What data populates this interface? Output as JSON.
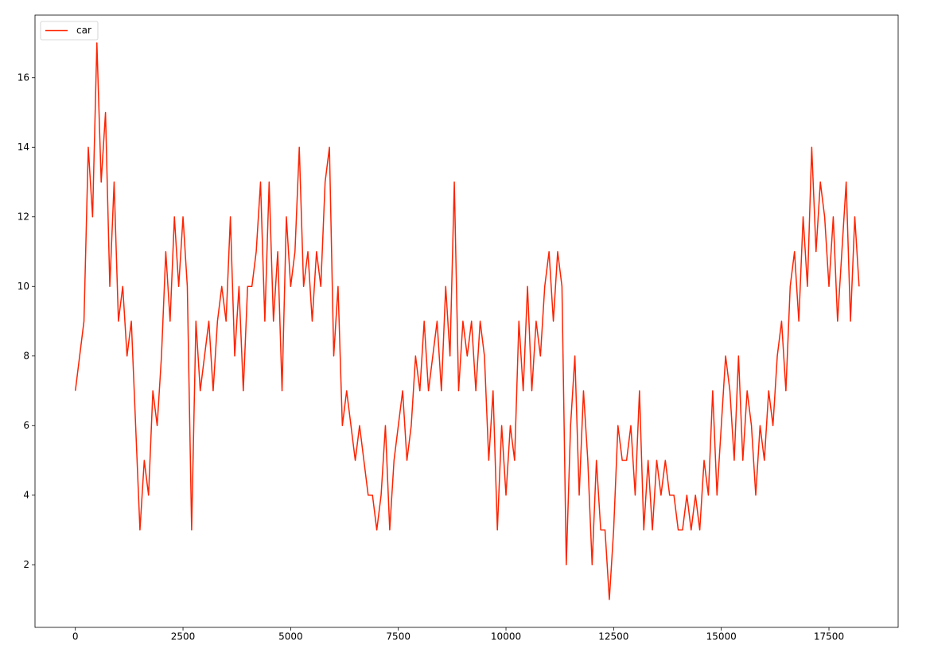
{
  "chart_data": {
    "type": "line",
    "x": [
      0,
      100,
      200,
      300,
      400,
      500,
      600,
      700,
      800,
      900,
      1000,
      1100,
      1200,
      1300,
      1400,
      1500,
      1600,
      1700,
      1800,
      1900,
      2000,
      2100,
      2200,
      2300,
      2400,
      2500,
      2600,
      2700,
      2800,
      2900,
      3000,
      3100,
      3200,
      3300,
      3400,
      3500,
      3600,
      3700,
      3800,
      3900,
      4000,
      4100,
      4200,
      4300,
      4400,
      4500,
      4600,
      4700,
      4800,
      4900,
      5000,
      5100,
      5200,
      5300,
      5400,
      5500,
      5600,
      5700,
      5800,
      5900,
      6000,
      6100,
      6200,
      6300,
      6400,
      6500,
      6600,
      6700,
      6800,
      6900,
      7000,
      7100,
      7200,
      7300,
      7400,
      7500,
      7600,
      7700,
      7800,
      7900,
      8000,
      8100,
      8200,
      8300,
      8400,
      8500,
      8600,
      8700,
      8800,
      8900,
      9000,
      9100,
      9200,
      9300,
      9400,
      9500,
      9600,
      9700,
      9800,
      9900,
      10000,
      10100,
      10200,
      10300,
      10400,
      10500,
      10600,
      10700,
      10800,
      10900,
      11000,
      11100,
      11200,
      11300,
      11400,
      11500,
      11600,
      11700,
      11800,
      11900,
      12000,
      12100,
      12200,
      12300,
      12400,
      12500,
      12600,
      12700,
      12800,
      12900,
      13000,
      13100,
      13200,
      13300,
      13400,
      13500,
      13600,
      13700,
      13800,
      13900,
      14000,
      14100,
      14200,
      14300,
      14400,
      14500,
      14600,
      14700,
      14800,
      14900,
      15000,
      15100,
      15200,
      15300,
      15400,
      15500,
      15600,
      15700,
      15800,
      15900,
      16000,
      16100,
      16200,
      16300,
      16400,
      16500,
      16600,
      16700,
      16800,
      16900,
      17000,
      17100,
      17200,
      17300,
      17400,
      17500,
      17600,
      17700,
      17800,
      17900,
      18000,
      18100,
      18200
    ],
    "series": [
      {
        "name": "car",
        "color": "#ff2200",
        "values": [
          7,
          8,
          9,
          14,
          12,
          17,
          13,
          15,
          10,
          13,
          9,
          10,
          8,
          9,
          6,
          3,
          5,
          4,
          7,
          6,
          8,
          11,
          9,
          12,
          10,
          12,
          10,
          3,
          9,
          7,
          8,
          9,
          7,
          9,
          10,
          9,
          12,
          8,
          10,
          7,
          10,
          10,
          11,
          13,
          9,
          13,
          9,
          11,
          7,
          12,
          10,
          11,
          14,
          10,
          11,
          9,
          11,
          10,
          13,
          14,
          8,
          10,
          6,
          7,
          6,
          5,
          6,
          5,
          4,
          4,
          3,
          4,
          6,
          3,
          5,
          6,
          7,
          5,
          6,
          8,
          7,
          9,
          7,
          8,
          9,
          7,
          10,
          8,
          13,
          7,
          9,
          8,
          9,
          7,
          9,
          8,
          5,
          7,
          3,
          6,
          4,
          6,
          5,
          9,
          7,
          10,
          7,
          9,
          8,
          10,
          11,
          9,
          11,
          10,
          2,
          6,
          8,
          4,
          7,
          5,
          2,
          5,
          3,
          3,
          1,
          3,
          6,
          5,
          5,
          6,
          4,
          7,
          3,
          5,
          3,
          5,
          4,
          5,
          4,
          4,
          3,
          3,
          4,
          3,
          4,
          3,
          5,
          4,
          7,
          4,
          6,
          8,
          7,
          5,
          8,
          5,
          7,
          6,
          4,
          6,
          5,
          7,
          6,
          8,
          9,
          7,
          10,
          11,
          9,
          12,
          10,
          14,
          11,
          13,
          12,
          10,
          12,
          9,
          11,
          13,
          9,
          12,
          10
        ]
      }
    ],
    "xlim": [
      -937,
      19107
    ],
    "ylim": [
      0.2,
      17.8
    ],
    "xticks": [
      0,
      2500,
      5000,
      7500,
      10000,
      12500,
      15000,
      17500
    ],
    "yticks": [
      2,
      4,
      6,
      8,
      10,
      12,
      14,
      16
    ],
    "legend": "upper left"
  }
}
